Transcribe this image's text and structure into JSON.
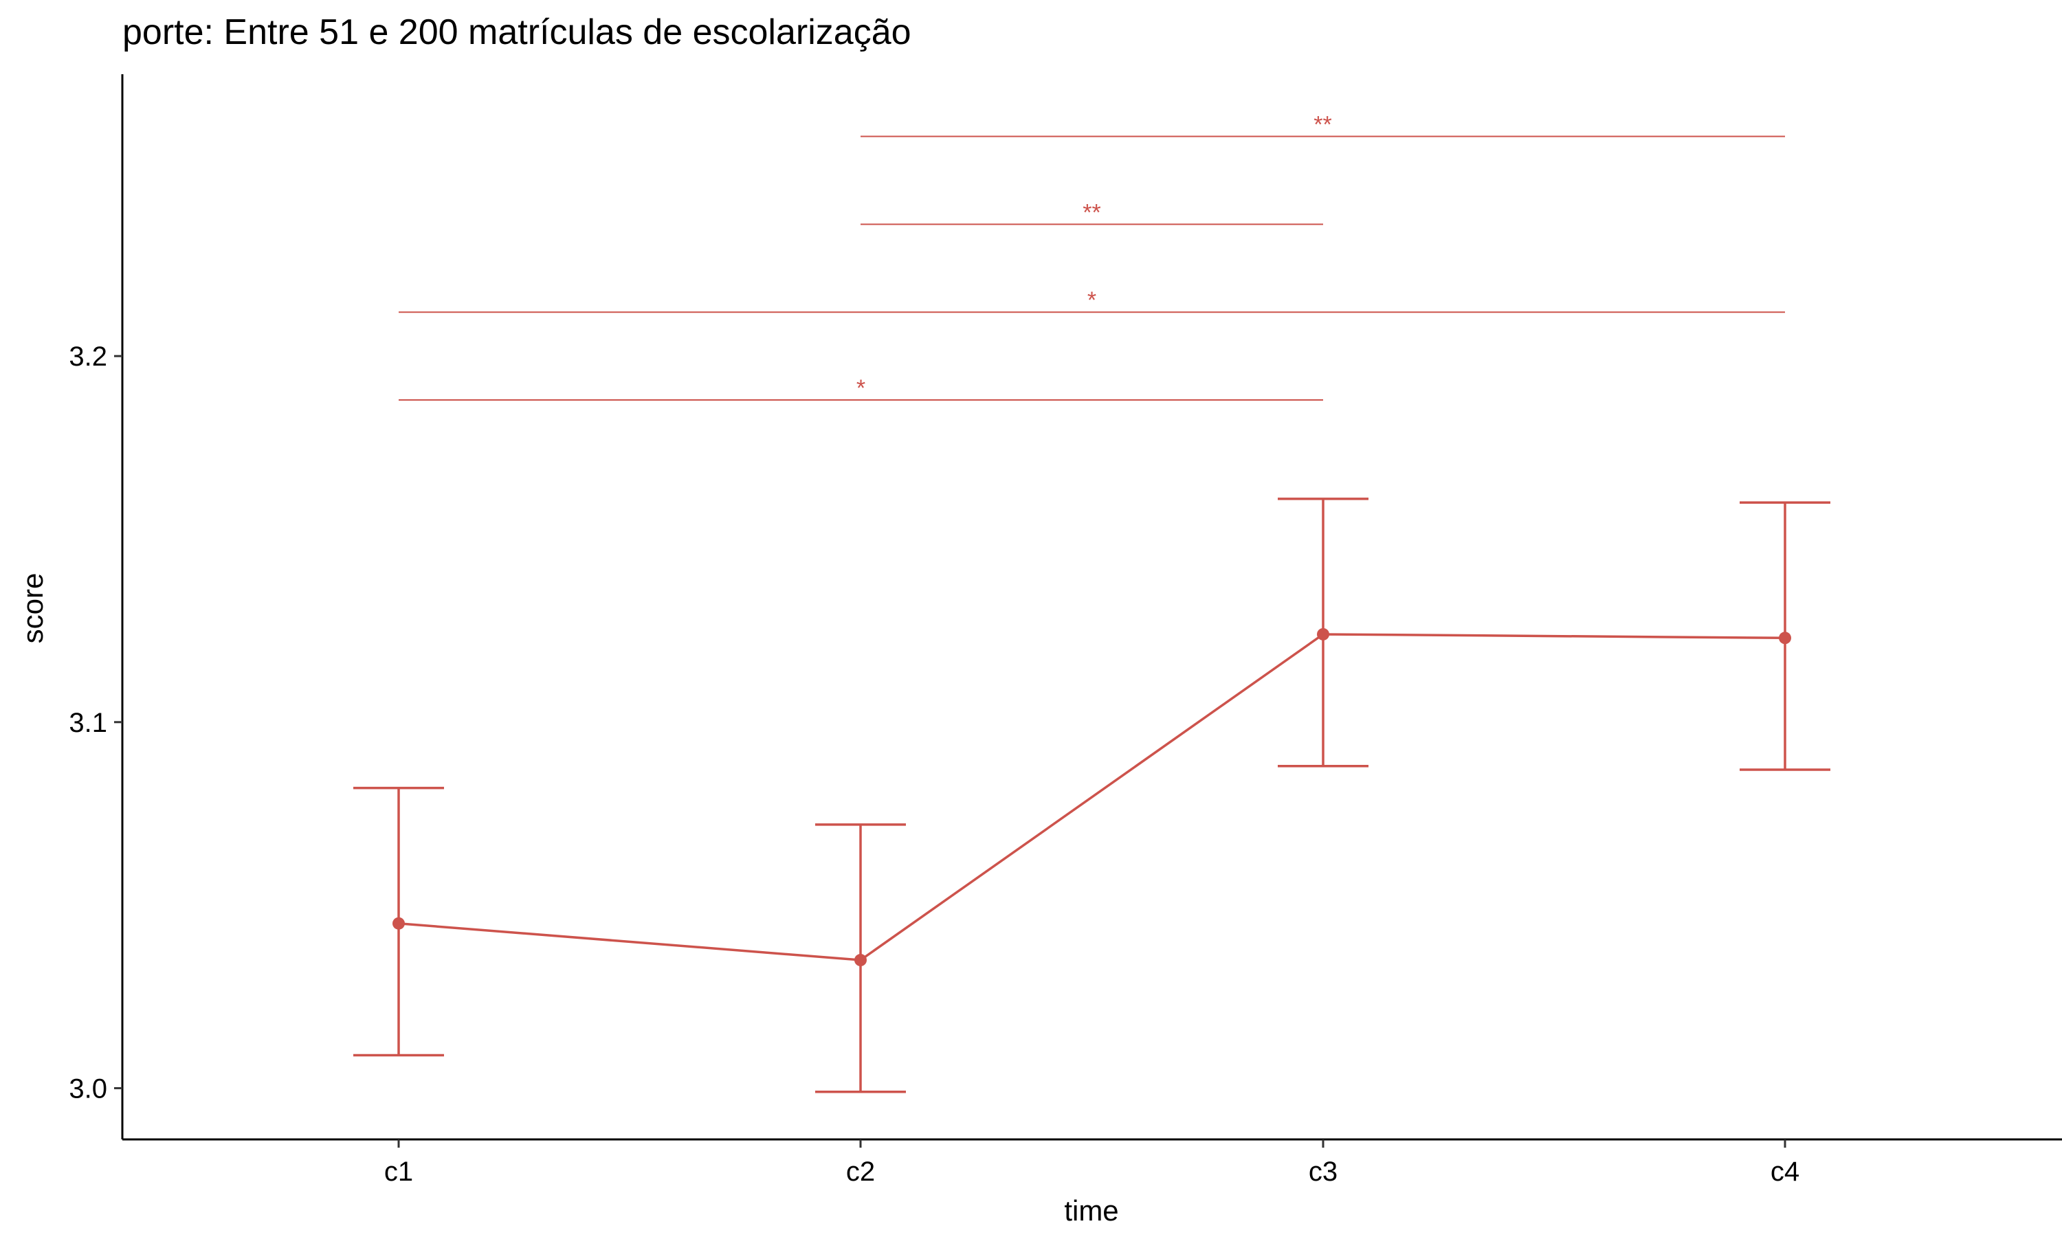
{
  "chart_data": {
    "type": "line",
    "title": "porte: Entre 51 e 200 matrículas de escolarização",
    "xlabel": "time",
    "ylabel": "score",
    "categories": [
      "c1",
      "c2",
      "c3",
      "c4"
    ],
    "series": [
      {
        "values": [
          3.045,
          3.035,
          3.124,
          3.123
        ],
        "error_low": [
          3.009,
          2.999,
          3.088,
          3.087
        ],
        "error_high": [
          3.082,
          3.072,
          3.161,
          3.16
        ]
      }
    ],
    "yticks": [
      3.0,
      3.1,
      3.2
    ],
    "ytick_labels": [
      "3.0",
      "3.1",
      "3.2"
    ],
    "ylim": [
      2.986,
      3.277
    ],
    "grid": false,
    "legend": "none",
    "color": "#cd534c",
    "significance": [
      {
        "from": "c1",
        "to": "c3",
        "y": 3.188,
        "label": "*"
      },
      {
        "from": "c1",
        "to": "c4",
        "y": 3.212,
        "label": "*"
      },
      {
        "from": "c2",
        "to": "c3",
        "y": 3.236,
        "label": "**"
      },
      {
        "from": "c2",
        "to": "c4",
        "y": 3.26,
        "label": "**"
      }
    ]
  }
}
